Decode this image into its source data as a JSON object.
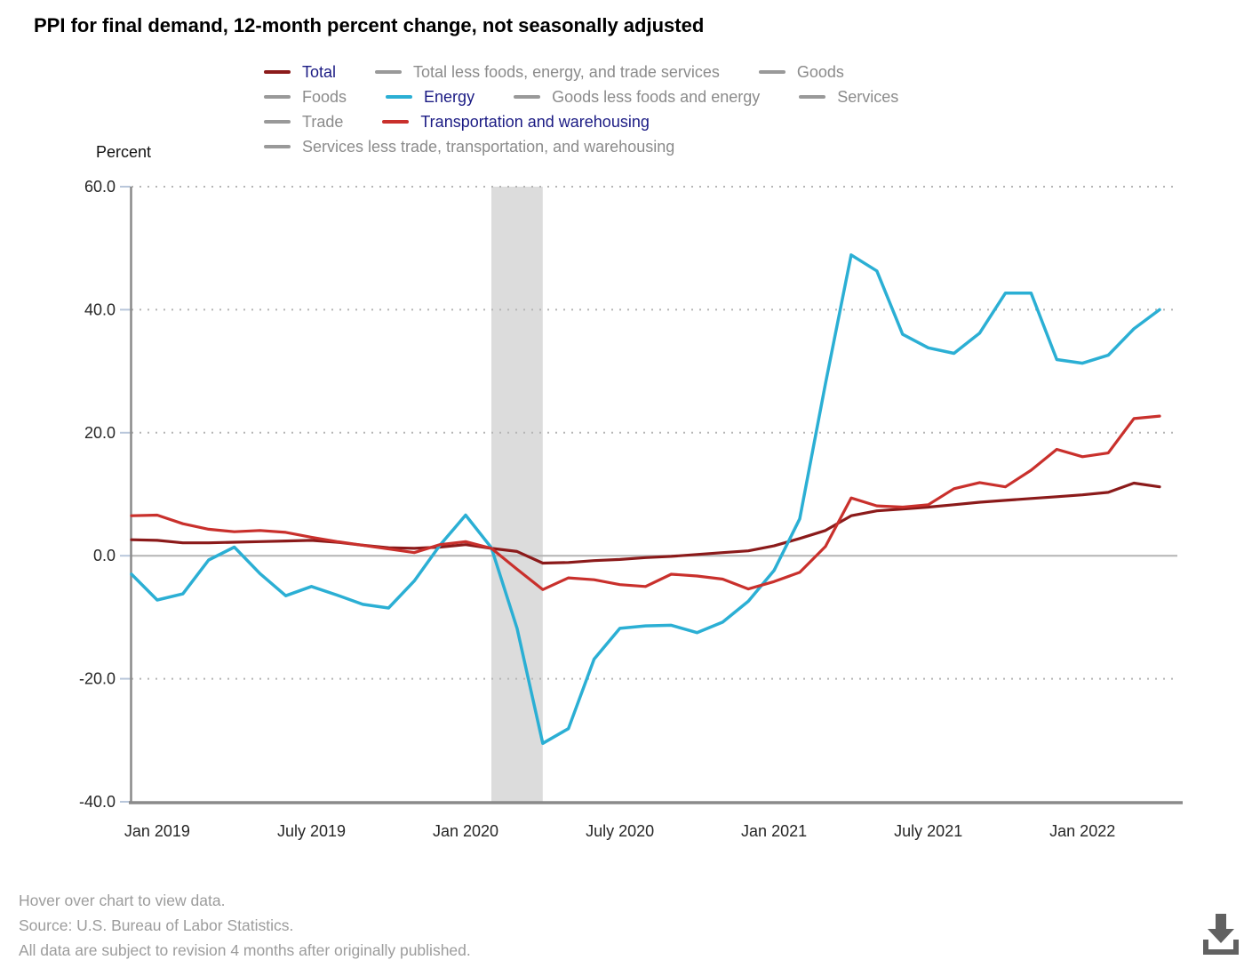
{
  "title": "PPI for final demand, 12-month percent change, not seasonally adjusted",
  "legend": {
    "rows": [
      {
        "items": [
          {
            "label": "Total",
            "state": "active",
            "color": "#8b1a1a"
          },
          {
            "label": "Total less foods, energy, and trade services",
            "state": "inactive",
            "color": "#999999"
          },
          {
            "label": "Goods",
            "state": "inactive",
            "color": "#999999"
          }
        ]
      },
      {
        "items": [
          {
            "label": "Foods",
            "state": "inactive",
            "color": "#999999"
          },
          {
            "label": "Energy",
            "state": "active",
            "color": "#2bafd4"
          },
          {
            "label": "Goods less foods and energy",
            "state": "inactive",
            "color": "#999999"
          },
          {
            "label": "Services",
            "state": "inactive",
            "color": "#999999"
          }
        ]
      },
      {
        "items": [
          {
            "label": "Trade",
            "state": "inactive",
            "color": "#999999"
          },
          {
            "label": "Transportation and warehousing",
            "state": "active",
            "color": "#c9302c"
          }
        ]
      },
      {
        "items": [
          {
            "label": "Services less trade, transportation, and warehousing",
            "state": "inactive",
            "color": "#999999"
          }
        ]
      }
    ]
  },
  "chart_data": {
    "type": "line",
    "title": "PPI for final demand, 12-month percent change, not seasonally adjusted",
    "xlabel": "",
    "ylabel": "Percent",
    "ylim": [
      -40,
      60
    ],
    "yticks": [
      60,
      40,
      20,
      0,
      -20,
      -40
    ],
    "ytick_labels": [
      "60.0",
      "40.0",
      "20.0",
      "0.0",
      "-20.0",
      "-40.0"
    ],
    "grid": "horizontal-dotted",
    "legend_position": "top",
    "x": [
      "Dec 2018",
      "Jan 2019",
      "Feb 2019",
      "Mar 2019",
      "Apr 2019",
      "May 2019",
      "Jun 2019",
      "Jul 2019",
      "Aug 2019",
      "Sep 2019",
      "Oct 2019",
      "Nov 2019",
      "Dec 2019",
      "Jan 2020",
      "Feb 2020",
      "Mar 2020",
      "Apr 2020",
      "May 2020",
      "Jun 2020",
      "Jul 2020",
      "Aug 2020",
      "Sep 2020",
      "Oct 2020",
      "Nov 2020",
      "Dec 2020",
      "Jan 2021",
      "Feb 2021",
      "Mar 2021",
      "Apr 2021",
      "May 2021",
      "Jun 2021",
      "Jul 2021",
      "Aug 2021",
      "Sep 2021",
      "Oct 2021",
      "Nov 2021",
      "Dec 2021",
      "Jan 2022",
      "Feb 2022",
      "Mar 2022",
      "Apr 2022"
    ],
    "xticks": [
      {
        "index": 1,
        "label": "Jan 2019"
      },
      {
        "index": 7,
        "label": "July 2019"
      },
      {
        "index": 13,
        "label": "Jan 2020"
      },
      {
        "index": 19,
        "label": "July 2020"
      },
      {
        "index": 25,
        "label": "Jan 2021"
      },
      {
        "index": 31,
        "label": "July 2021"
      },
      {
        "index": 37,
        "label": "Jan 2022"
      }
    ],
    "shaded_region": {
      "label": "recession",
      "from_index": 14,
      "to_index": 16
    },
    "series": [
      {
        "name": "Total",
        "color": "#8b1a1a",
        "stroke_width": 3.2,
        "values": [
          2.6,
          2.5,
          2.1,
          2.1,
          2.2,
          2.3,
          2.4,
          2.5,
          2.2,
          1.7,
          1.3,
          1.2,
          1.4,
          1.8,
          1.2,
          0.7,
          -1.2,
          -1.1,
          -0.8,
          -0.6,
          -0.3,
          -0.1,
          0.2,
          0.5,
          0.8,
          1.6,
          2.8,
          4.1,
          6.5,
          7.3,
          7.6,
          7.9,
          8.3,
          8.7,
          9.0,
          9.3,
          9.6,
          9.9,
          10.3,
          11.8,
          11.2
        ]
      },
      {
        "name": "Energy",
        "color": "#2bafd4",
        "stroke_width": 3.5,
        "values": [
          -3.0,
          -7.2,
          -6.2,
          -0.7,
          1.4,
          -2.9,
          -6.5,
          -5.0,
          -6.4,
          -7.9,
          -8.5,
          -4.1,
          1.7,
          6.6,
          1.3,
          -11.8,
          -30.5,
          -28.1,
          -16.8,
          -11.8,
          -11.4,
          -11.3,
          -12.5,
          -10.8,
          -7.4,
          -2.4,
          6.0,
          28.0,
          48.9,
          46.3,
          36.0,
          33.8,
          32.9,
          36.2,
          42.7,
          42.7,
          31.9,
          31.3,
          32.6,
          36.9,
          40.0
        ]
      },
      {
        "name": "Transportation and warehousing",
        "color": "#c9302c",
        "stroke_width": 3.2,
        "values": [
          6.5,
          6.6,
          5.2,
          4.3,
          3.9,
          4.1,
          3.8,
          3.0,
          2.3,
          1.7,
          1.1,
          0.5,
          1.8,
          2.3,
          1.2,
          -2.2,
          -5.5,
          -3.6,
          -3.9,
          -4.7,
          -5.0,
          -3.0,
          -3.3,
          -3.8,
          -5.4,
          -4.2,
          -2.7,
          1.5,
          9.4,
          8.1,
          7.9,
          8.3,
          10.9,
          11.9,
          11.2,
          13.9,
          17.3,
          16.1,
          16.7,
          22.3,
          22.7
        ]
      }
    ]
  },
  "footer": {
    "lines": [
      "Hover over chart to view data.",
      "Source: U.S. Bureau of Labor Statistics.",
      "All data are subject to revision 4 months after originally published."
    ]
  },
  "icons": {
    "download": "download-arrow-to-tray"
  },
  "colors": {
    "accent_navy": "#1b1b84",
    "legend_inactive_text": "#8b8b8b",
    "legend_inactive_swatch": "#999999",
    "recession_band": "#dcdcdc",
    "grid_dots": "#b5b5b5",
    "zero_line": "#b4b4b4",
    "axis": "#8a8a8a",
    "y_tick": "#b8c6da",
    "tick_text": "#262626",
    "footer_text": "#9c9c9c",
    "download_icon": "#616161",
    "title_text": "#000000"
  }
}
